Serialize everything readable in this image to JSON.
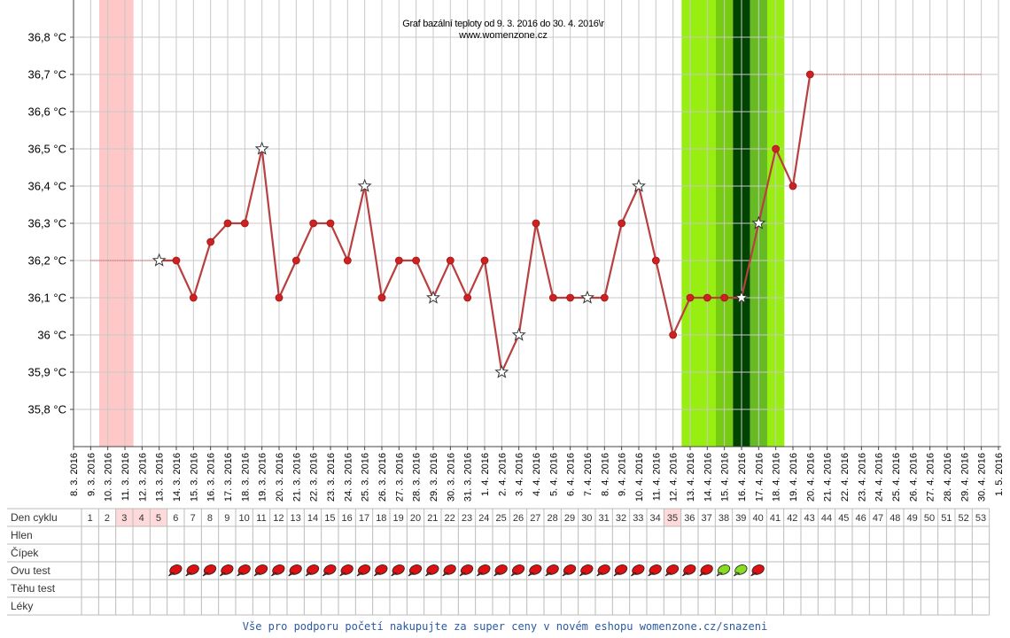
{
  "chart_data": {
    "type": "line",
    "title": "Graf bazální teploty od 9. 3. 2016 do 30. 4. 2016\\r",
    "subtitle": "www.womenzone.cz",
    "y_unit": "°C",
    "ylim": [
      35.7,
      36.9
    ],
    "y_ticks": [
      "35,8 °C",
      "35,9 °C",
      "36 °C",
      "36,1 °C",
      "36,2 °C",
      "36,3 °C",
      "36,4 °C",
      "36,5 °C",
      "36,6 °C",
      "36,7 °C",
      "36,8 °C"
    ],
    "y_tick_values": [
      35.8,
      35.9,
      36.0,
      36.1,
      36.2,
      36.3,
      36.4,
      36.5,
      36.6,
      36.7,
      36.8
    ],
    "x_dates": [
      "8. 3. 2016",
      "9. 3. 2016",
      "10. 3. 2016",
      "11. 3. 2016",
      "12. 3. 2016",
      "13. 3. 2016",
      "14. 3. 2016",
      "15. 3. 2016",
      "16. 3. 2016",
      "17. 3. 2016",
      "18. 3. 2016",
      "19. 3. 2016",
      "20. 3. 2016",
      "21. 3. 2016",
      "22. 3. 2016",
      "23. 3. 2016",
      "24. 3. 2016",
      "25. 3. 2016",
      "26. 3. 2016",
      "27. 3. 2016",
      "28. 3. 2016",
      "29. 3. 2016",
      "30. 3. 2016",
      "31. 3. 2016",
      "1. 4. 2016",
      "2. 4. 2016",
      "3. 4. 2016",
      "4. 4. 2016",
      "5. 4. 2016",
      "6. 4. 2016",
      "7. 4. 2016",
      "8. 4. 2016",
      "9. 4. 2016",
      "10. 4. 2016",
      "11. 4. 2016",
      "12. 4. 2016",
      "13. 4. 2016",
      "14. 4. 2016",
      "15. 4. 2016",
      "16. 4. 2016",
      "17. 4. 2016",
      "18. 4. 2016",
      "19. 4. 2016",
      "20. 4. 2016",
      "21. 4. 2016",
      "22. 4. 2016",
      "23. 4. 2016",
      "24. 4. 2016",
      "25. 4. 2016",
      "26. 4. 2016",
      "27. 4. 2016",
      "28. 4. 2016",
      "29. 4. 2016",
      "30. 4. 2016",
      "1. 5. 2016"
    ],
    "series": [
      {
        "dates": [
          "13. 3. 2016",
          "14. 3. 2016",
          "15. 3. 2016",
          "16. 3. 2016",
          "17. 3. 2016",
          "18. 3. 2016",
          "19. 3. 2016",
          "20. 3. 2016",
          "21. 3. 2016",
          "22. 3. 2016",
          "23. 3. 2016",
          "24. 3. 2016",
          "25. 3. 2016",
          "26. 3. 2016",
          "27. 3. 2016",
          "28. 3. 2016",
          "29. 3. 2016",
          "30. 3. 2016",
          "31. 3. 2016",
          "1. 4. 2016",
          "2. 4. 2016",
          "3. 4. 2016",
          "4. 4. 2016",
          "5. 4. 2016",
          "6. 4. 2016",
          "7. 4. 2016",
          "8. 4. 2016",
          "9. 4. 2016",
          "10. 4. 2016",
          "11. 4. 2016",
          "12. 4. 2016",
          "13. 4. 2016",
          "14. 4. 2016",
          "15. 4. 2016",
          "16. 4. 2016",
          "17. 4. 2016",
          "18. 4. 2016",
          "19. 4. 2016",
          "20. 4. 2016"
        ],
        "values": [
          36.2,
          36.2,
          36.1,
          36.25,
          36.3,
          36.3,
          36.5,
          36.1,
          36.2,
          36.3,
          36.3,
          36.2,
          36.4,
          36.1,
          36.2,
          36.2,
          36.1,
          36.2,
          36.1,
          36.2,
          35.9,
          36.0,
          36.3,
          36.1,
          36.1,
          36.1,
          36.1,
          36.3,
          36.4,
          36.2,
          36.0,
          36.1,
          36.1,
          36.1,
          36.1,
          36.3,
          36.5,
          36.4,
          36.7
        ],
        "markers": [
          "star",
          "dot",
          "dot",
          "dot",
          "dot",
          "dot",
          "star",
          "dot",
          "dot",
          "dot",
          "dot",
          "dot",
          "star",
          "dot",
          "dot",
          "dot",
          "star",
          "dot",
          "dot",
          "dot",
          "star",
          "star",
          "dot",
          "dot",
          "dot",
          "star",
          "dot",
          "dot",
          "star",
          "dot",
          "dot",
          "dot",
          "dot",
          "dot",
          "star",
          "star",
          "dot",
          "dot",
          "dot"
        ],
        "color": "#b84040"
      }
    ],
    "reference_lines": [
      {
        "from": "9. 3. 2016",
        "to": "13. 3. 2016",
        "value": 36.2
      },
      {
        "from": "20. 4. 2016",
        "to": "30. 4. 2016",
        "value": 36.7
      }
    ],
    "bands": [
      {
        "from": "9. 3. 2016",
        "to": "11. 3. 2016",
        "color": "#ffc8c8"
      },
      {
        "from": "12. 4. 2016",
        "to": "14. 4. 2016",
        "color": "#99ee11"
      },
      {
        "from": "14. 4. 2016",
        "to": "15. 4. 2016",
        "color": "#77cc11"
      },
      {
        "from": "15. 4. 2016",
        "to": "16. 4. 2016",
        "color": "#004400"
      },
      {
        "from": "16. 4. 2016",
        "to": "17. 4. 2016",
        "color": "#66bb22"
      },
      {
        "from": "17. 4. 2016",
        "to": "18. 4. 2016",
        "color": "#99ee11"
      }
    ],
    "grid": true,
    "cycle_table": {
      "row_labels": [
        "Den cyklu",
        "Hlen",
        "Čípek",
        "Ovu test",
        "Těhu test",
        "Léky"
      ],
      "cycle_days": [
        "1",
        "2",
        "3",
        "4",
        "5",
        "6",
        "7",
        "8",
        "9",
        "10",
        "11",
        "12",
        "13",
        "14",
        "15",
        "16",
        "17",
        "18",
        "19",
        "20",
        "21",
        "22",
        "23",
        "24",
        "25",
        "26",
        "27",
        "28",
        "29",
        "30",
        "31",
        "32",
        "33",
        "34",
        "35",
        "36",
        "37",
        "38",
        "39",
        "40",
        "41",
        "42",
        "43",
        "44",
        "45",
        "46",
        "47",
        "48",
        "49",
        "50",
        "51",
        "52",
        "53"
      ],
      "highlighted_days": [
        "3",
        "4",
        "5",
        "35"
      ],
      "highlight_color": "#ffdada",
      "ovu_test": [
        "",
        "",
        "",
        "",
        "",
        "neg",
        "neg",
        "neg",
        "neg",
        "neg",
        "neg",
        "neg",
        "neg",
        "neg",
        "neg",
        "neg",
        "neg",
        "neg",
        "neg",
        "neg",
        "neg",
        "neg",
        "neg",
        "neg",
        "neg",
        "neg",
        "neg",
        "neg",
        "neg",
        "neg",
        "neg",
        "neg",
        "neg",
        "neg",
        "neg",
        "neg",
        "neg",
        "pos",
        "pos",
        "neg",
        "",
        "",
        "",
        "",
        "",
        "",
        "",
        "",
        "",
        "",
        "",
        "",
        ""
      ],
      "ovu_colors": {
        "neg": "#dd1111",
        "pos": "#88dd22"
      }
    }
  },
  "footer": {
    "text": "Vše pro podporu početí nakupujte za super ceny v novém eshopu womenzone.cz/snazeni"
  }
}
